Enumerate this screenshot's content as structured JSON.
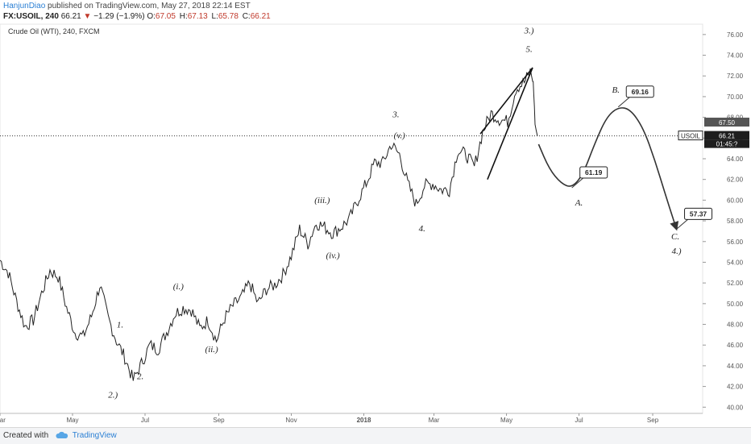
{
  "header": {
    "user": "HanjunDiao",
    "published": "published on TradingView.com, May 27, 2018 22:14 EST",
    "symbol": "FX:USOIL, 240",
    "last": "66.21",
    "change": "−1.29 (−1.9%)",
    "o_label": "O:",
    "o_value": "67.05",
    "h_label": "H:",
    "h_value": "67.13",
    "l_label": "L:",
    "l_value": "65.78",
    "c_label": "C:",
    "c_value": "66.21"
  },
  "footer": {
    "created_with": "Created with",
    "brand": "TradingView"
  },
  "colors": {
    "up": "#222222",
    "down": "#222222",
    "projection": "#333333",
    "price_tag": "#1e1e1e"
  },
  "chart_data": {
    "type": "line",
    "title": "Crude Oil (WTI), 240, FXCM",
    "ylim": [
      39.4,
      77.0
    ],
    "xlim": [
      "2017-03-01",
      "2018-10-13"
    ],
    "y_ticks": [
      40,
      42,
      44,
      46,
      48,
      50,
      52,
      54,
      56,
      58,
      60,
      62,
      64,
      66,
      68,
      70,
      72,
      74,
      76
    ],
    "y_tick_labels": [
      "40.00",
      "42.00",
      "44.00",
      "46.00",
      "48.00",
      "50.00",
      "52.00",
      "54.00",
      "56.00",
      "58.00",
      "60.00",
      "62.00",
      "64.00",
      "66.00",
      "68.00",
      "70.00",
      "72.00",
      "74.00",
      "76.00"
    ],
    "x_ticks": [
      {
        "date": "2017-03-01",
        "label": "Mar"
      },
      {
        "date": "2017-05-01",
        "label": "May"
      },
      {
        "date": "2017-07-01",
        "label": "Jul"
      },
      {
        "date": "2017-09-01",
        "label": "Sep"
      },
      {
        "date": "2017-11-01",
        "label": "Nov"
      },
      {
        "date": "2018-01-01",
        "label": "2018"
      },
      {
        "date": "2018-03-01",
        "label": "Mar"
      },
      {
        "date": "2018-05-01",
        "label": "May"
      },
      {
        "date": "2018-07-01",
        "label": "Jul"
      },
      {
        "date": "2018-09-01",
        "label": "Sep"
      }
    ],
    "current_price": 66.21,
    "current_label": "USOIL",
    "price_marker": "67.50",
    "countdown": "01:45:?",
    "series": [
      {
        "points": [
          [
            "2017-03-01",
            54.2
          ],
          [
            "2017-03-08",
            53.0
          ],
          [
            "2017-03-15",
            50.2
          ],
          [
            "2017-03-22",
            47.8
          ],
          [
            "2017-03-29",
            48.4
          ],
          [
            "2017-04-05",
            51.0
          ],
          [
            "2017-04-12",
            53.2
          ],
          [
            "2017-04-19",
            52.6
          ],
          [
            "2017-04-26",
            49.6
          ],
          [
            "2017-05-03",
            47.2
          ],
          [
            "2017-05-10",
            46.8
          ],
          [
            "2017-05-17",
            48.8
          ],
          [
            "2017-05-24",
            51.8
          ],
          [
            "2017-05-31",
            48.6
          ],
          [
            "2017-06-07",
            46.4
          ],
          [
            "2017-06-14",
            44.8
          ],
          [
            "2017-06-21",
            42.6
          ],
          [
            "2017-06-28",
            44.2
          ],
          [
            "2017-07-05",
            46.0
          ],
          [
            "2017-07-12",
            45.6
          ],
          [
            "2017-07-19",
            47.2
          ],
          [
            "2017-07-26",
            49.0
          ],
          [
            "2017-08-02",
            49.6
          ],
          [
            "2017-08-09",
            49.4
          ],
          [
            "2017-08-16",
            47.6
          ],
          [
            "2017-08-23",
            48.4
          ],
          [
            "2017-08-30",
            46.4
          ],
          [
            "2017-09-06",
            48.6
          ],
          [
            "2017-09-13",
            49.8
          ],
          [
            "2017-09-20",
            50.6
          ],
          [
            "2017-09-27",
            52.0
          ],
          [
            "2017-10-04",
            50.0
          ],
          [
            "2017-10-11",
            51.4
          ],
          [
            "2017-10-18",
            51.8
          ],
          [
            "2017-10-25",
            52.8
          ],
          [
            "2017-11-01",
            54.6
          ],
          [
            "2017-11-08",
            57.2
          ],
          [
            "2017-11-15",
            55.8
          ],
          [
            "2017-11-22",
            57.8
          ],
          [
            "2017-11-29",
            57.4
          ],
          [
            "2017-12-06",
            56.8
          ],
          [
            "2017-12-13",
            57.4
          ],
          [
            "2017-12-20",
            58.2
          ],
          [
            "2017-12-27",
            60.0
          ],
          [
            "2018-01-03",
            61.6
          ],
          [
            "2018-01-10",
            63.6
          ],
          [
            "2018-01-17",
            63.6
          ],
          [
            "2018-01-24",
            65.4
          ],
          [
            "2018-01-31",
            64.4
          ],
          [
            "2018-02-07",
            61.6
          ],
          [
            "2018-02-14",
            59.6
          ],
          [
            "2018-02-21",
            61.4
          ],
          [
            "2018-02-28",
            61.6
          ],
          [
            "2018-03-07",
            61.0
          ],
          [
            "2018-03-14",
            61.0
          ],
          [
            "2018-03-21",
            64.8
          ],
          [
            "2018-03-28",
            64.4
          ],
          [
            "2018-04-04",
            63.2
          ],
          [
            "2018-04-11",
            66.6
          ],
          [
            "2018-04-18",
            68.4
          ],
          [
            "2018-04-25",
            67.8
          ],
          [
            "2018-05-02",
            67.6
          ],
          [
            "2018-05-09",
            70.8
          ],
          [
            "2018-05-16",
            71.4
          ],
          [
            "2018-05-21",
            72.4
          ],
          [
            "2018-05-23",
            71.8
          ],
          [
            "2018-05-24",
            70.4
          ],
          [
            "2018-05-25",
            67.4
          ],
          [
            "2018-05-27",
            66.21
          ]
        ]
      }
    ],
    "annotations": [
      {
        "text": "1.",
        "date": "2017-06-10",
        "price": 47.7
      },
      {
        "text": "2.",
        "date": "2017-06-27",
        "price": 42.7
      },
      {
        "text": "2.)",
        "date": "2017-06-04",
        "price": 40.9
      },
      {
        "text": "(i.)",
        "date": "2017-07-29",
        "price": 51.4
      },
      {
        "text": "(ii.)",
        "date": "2017-08-26",
        "price": 45.3
      },
      {
        "text": "(iii.)",
        "date": "2017-11-27",
        "price": 59.7
      },
      {
        "text": "(iv.)",
        "date": "2017-12-06",
        "price": 54.4
      },
      {
        "text": "3.",
        "date": "2018-01-28",
        "price": 68.0
      },
      {
        "text": "(v.)",
        "date": "2018-01-31",
        "price": 66.0
      },
      {
        "text": "4.",
        "date": "2018-02-19",
        "price": 57.0
      },
      {
        "text": "3.)",
        "date": "2018-05-20",
        "price": 76.1
      },
      {
        "text": "5.",
        "date": "2018-05-20",
        "price": 74.3
      },
      {
        "text": "A.",
        "date": "2018-07-01",
        "price": 59.5
      },
      {
        "text": "B.",
        "date": "2018-08-01",
        "price": 70.4
      },
      {
        "text": "C.",
        "date": "2018-09-20",
        "price": 56.2
      },
      {
        "text": "4.)",
        "date": "2018-09-21",
        "price": 54.8
      }
    ],
    "wedge_lines": [
      [
        [
          "2018-04-09",
          66.4
        ],
        [
          "2018-05-23",
          72.8
        ]
      ],
      [
        [
          "2018-04-15",
          62.0
        ],
        [
          "2018-05-23",
          72.8
        ]
      ]
    ],
    "projection": {
      "path": [
        [
          "2018-05-28",
          65.4
        ],
        [
          "2018-06-06",
          63.0
        ],
        [
          "2018-06-16",
          61.6
        ],
        [
          "2018-06-25",
          61.2
        ],
        [
          "2018-07-04",
          62.4
        ],
        [
          "2018-07-14",
          65.4
        ],
        [
          "2018-07-24",
          68.0
        ],
        [
          "2018-08-03",
          69.0
        ],
        [
          "2018-08-13",
          68.8
        ],
        [
          "2018-08-24",
          67.0
        ],
        [
          "2018-09-03",
          63.8
        ],
        [
          "2018-09-12",
          60.4
        ],
        [
          "2018-09-21",
          57.2
        ]
      ],
      "targets": [
        {
          "label": "61.19",
          "date": "2018-06-25",
          "price": 61.2
        },
        {
          "label": "69.16",
          "date": "2018-08-03",
          "price": 69.0
        },
        {
          "label": "57.37",
          "date": "2018-09-21",
          "price": 57.2
        }
      ]
    }
  }
}
